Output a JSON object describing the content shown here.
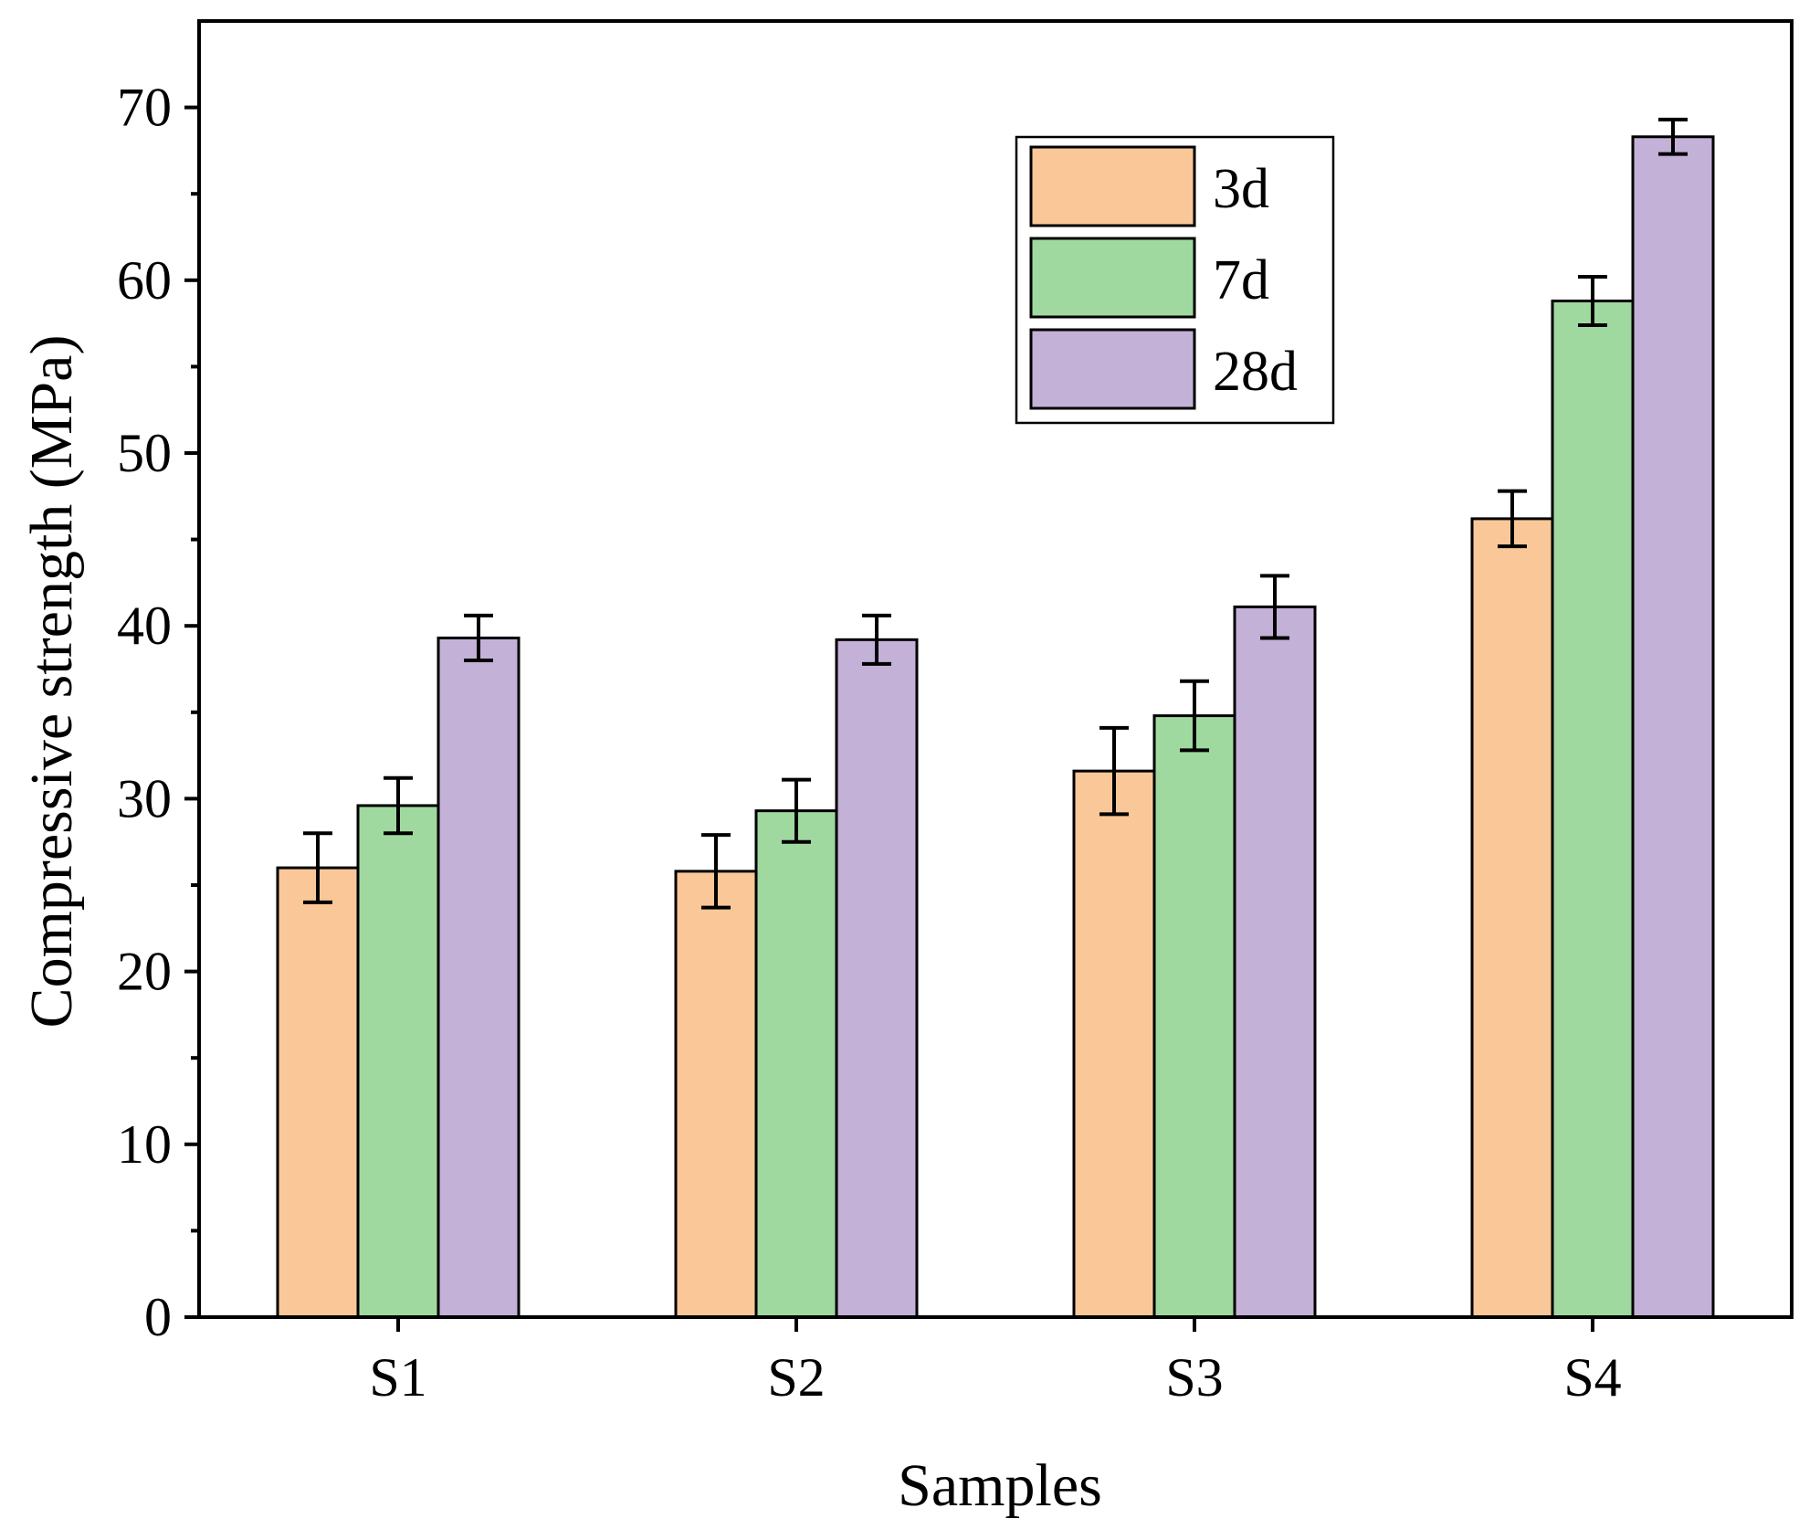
{
  "chart_data": {
    "type": "bar",
    "title": "",
    "xlabel": "Samples",
    "ylabel": "Compressive strength (MPa)",
    "categories": [
      "S1",
      "S2",
      "S3",
      "S4"
    ],
    "ylim": [
      0,
      75
    ],
    "yticks": [
      0,
      10,
      20,
      30,
      40,
      50,
      60,
      70
    ],
    "grid": false,
    "legend_position": "top-right",
    "series": [
      {
        "name": "3d",
        "color": "#FAC898",
        "values": [
          26.0,
          25.8,
          31.6,
          46.2
        ],
        "errors": [
          2.0,
          2.1,
          2.5,
          1.6
        ]
      },
      {
        "name": "7d",
        "color": "#A0D9A0",
        "values": [
          29.6,
          29.3,
          34.8,
          58.8
        ],
        "errors": [
          1.6,
          1.8,
          2.0,
          1.4
        ]
      },
      {
        "name": "28d",
        "color": "#C3B1D7",
        "values": [
          39.3,
          39.2,
          41.1,
          68.3
        ],
        "errors": [
          1.3,
          1.4,
          1.8,
          1.0
        ]
      }
    ]
  }
}
